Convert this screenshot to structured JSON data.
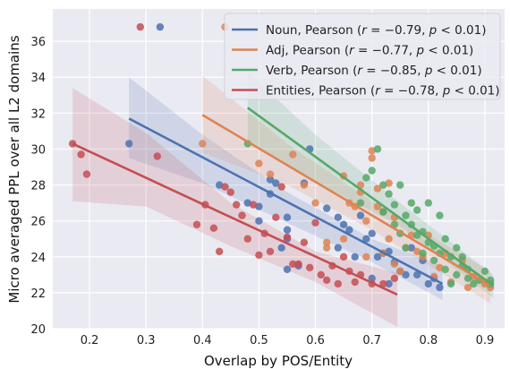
{
  "chart_data": {
    "type": "scatter",
    "title": "",
    "xlabel": "Overlap by POS/Entity",
    "ylabel": "Micro averaged PPL over all L2 domains",
    "xlim": [
      0.135,
      0.935
    ],
    "ylim": [
      20,
      37.8
    ],
    "xticks": [
      0.2,
      0.3,
      0.4,
      0.5,
      0.6,
      0.7,
      0.8,
      0.9
    ],
    "xtick_labels": [
      "0.2",
      "0.3",
      "0.4",
      "0.5",
      "0.6",
      "0.7",
      "0.8",
      "0.9"
    ],
    "yticks": [
      20,
      22,
      24,
      26,
      28,
      30,
      32,
      34,
      36
    ],
    "ytick_labels": [
      "20",
      "22",
      "24",
      "26",
      "28",
      "30",
      "32",
      "34",
      "36"
    ],
    "grid": true,
    "legend_position": "top-right",
    "series": [
      {
        "name": "Noun, Pearson (r = −0.79, p < 0.01)",
        "name_parts": [
          "Noun, Pearson (",
          "r",
          " = −0.79, ",
          "p",
          " < 0.01)"
        ],
        "color": "#4c72b0",
        "points": [
          [
            0.27,
            30.3
          ],
          [
            0.325,
            36.8
          ],
          [
            0.43,
            28.0
          ],
          [
            0.48,
            27.0
          ],
          [
            0.5,
            26.8
          ],
          [
            0.5,
            26.0
          ],
          [
            0.52,
            28.3
          ],
          [
            0.52,
            27.5
          ],
          [
            0.53,
            28.1
          ],
          [
            0.55,
            26.2
          ],
          [
            0.55,
            25.5
          ],
          [
            0.55,
            25.0
          ],
          [
            0.54,
            24.5
          ],
          [
            0.55,
            23.3
          ],
          [
            0.57,
            23.5
          ],
          [
            0.58,
            28.1
          ],
          [
            0.59,
            30.0
          ],
          [
            0.62,
            26.7
          ],
          [
            0.64,
            26.2
          ],
          [
            0.64,
            24.5
          ],
          [
            0.65,
            25.8
          ],
          [
            0.66,
            25.5
          ],
          [
            0.67,
            24.0
          ],
          [
            0.68,
            26.3
          ],
          [
            0.69,
            25.0
          ],
          [
            0.7,
            25.3
          ],
          [
            0.7,
            22.8
          ],
          [
            0.71,
            24.0
          ],
          [
            0.72,
            24.2
          ],
          [
            0.73,
            22.5
          ],
          [
            0.73,
            24.3
          ],
          [
            0.74,
            23.7
          ],
          [
            0.75,
            23.2
          ],
          [
            0.76,
            23.0
          ],
          [
            0.77,
            24.5
          ],
          [
            0.78,
            23.0
          ],
          [
            0.79,
            23.8
          ],
          [
            0.8,
            22.5
          ],
          [
            0.81,
            22.8
          ],
          [
            0.82,
            22.3
          ]
        ],
        "fit_x": [
          0.27,
          0.825
        ],
        "fit_y": [
          31.7,
          22.5
        ],
        "ci_x": [
          0.27,
          0.4,
          0.55,
          0.7,
          0.825
        ],
        "ci_lower": [
          29.5,
          28.1,
          25.9,
          23.7,
          21.6
        ],
        "ci_upper": [
          34.0,
          30.8,
          27.6,
          25.0,
          23.5
        ]
      },
      {
        "name": "Adj, Pearson (r = −0.77, p < 0.01)",
        "name_parts": [
          "Adj, Pearson (",
          "r",
          " = −0.77, ",
          "p",
          " < 0.01)"
        ],
        "color": "#dd8452",
        "points": [
          [
            0.4,
            30.3
          ],
          [
            0.44,
            36.8
          ],
          [
            0.5,
            29.2
          ],
          [
            0.52,
            28.6
          ],
          [
            0.56,
            29.7
          ],
          [
            0.58,
            28.0
          ],
          [
            0.6,
            27.0
          ],
          [
            0.62,
            24.8
          ],
          [
            0.62,
            24.5
          ],
          [
            0.65,
            25.0
          ],
          [
            0.65,
            28.5
          ],
          [
            0.66,
            27.0
          ],
          [
            0.67,
            26.8
          ],
          [
            0.68,
            28.0
          ],
          [
            0.68,
            27.6
          ],
          [
            0.69,
            26.0
          ],
          [
            0.69,
            24.0
          ],
          [
            0.7,
            29.9
          ],
          [
            0.7,
            29.5
          ],
          [
            0.71,
            27.8
          ],
          [
            0.71,
            26.8
          ],
          [
            0.72,
            26.5
          ],
          [
            0.72,
            24.2
          ],
          [
            0.73,
            28.1
          ],
          [
            0.73,
            25.0
          ],
          [
            0.74,
            26.2
          ],
          [
            0.74,
            23.6
          ],
          [
            0.75,
            23.2
          ],
          [
            0.76,
            24.5
          ],
          [
            0.77,
            25.2
          ],
          [
            0.78,
            24.3
          ],
          [
            0.79,
            24.0
          ],
          [
            0.8,
            25.2
          ],
          [
            0.81,
            22.9
          ],
          [
            0.82,
            23.4
          ],
          [
            0.83,
            24.2
          ],
          [
            0.84,
            22.6
          ],
          [
            0.86,
            23.8
          ],
          [
            0.87,
            22.3
          ],
          [
            0.88,
            22.9
          ],
          [
            0.9,
            22.5
          ],
          [
            0.91,
            22.3
          ]
        ],
        "fit_x": [
          0.4,
          0.91
        ],
        "fit_y": [
          31.9,
          22.4
        ],
        "ci_x": [
          0.4,
          0.55,
          0.7,
          0.91
        ],
        "ci_lower": [
          29.8,
          28.0,
          25.5,
          21.4
        ],
        "ci_upper": [
          34.1,
          30.3,
          27.1,
          23.2
        ]
      },
      {
        "name": "Verb, Pearson (r = −0.85, p < 0.01)",
        "name_parts": [
          "Verb, Pearson (",
          "r",
          " = −0.85, ",
          "p",
          " < 0.01)"
        ],
        "color": "#55a868",
        "points": [
          [
            0.48,
            30.3
          ],
          [
            0.68,
            27.0
          ],
          [
            0.69,
            28.4
          ],
          [
            0.7,
            28.8
          ],
          [
            0.71,
            30.0
          ],
          [
            0.72,
            28.0
          ],
          [
            0.72,
            26.5
          ],
          [
            0.73,
            27.5
          ],
          [
            0.74,
            26.9
          ],
          [
            0.74,
            25.8
          ],
          [
            0.75,
            25.3
          ],
          [
            0.75,
            28.0
          ],
          [
            0.76,
            26.3
          ],
          [
            0.76,
            24.5
          ],
          [
            0.77,
            25.8
          ],
          [
            0.77,
            27.0
          ],
          [
            0.78,
            25.2
          ],
          [
            0.78,
            26.6
          ],
          [
            0.79,
            24.2
          ],
          [
            0.79,
            25.4
          ],
          [
            0.8,
            27.0
          ],
          [
            0.8,
            24.8
          ],
          [
            0.81,
            24.6
          ],
          [
            0.81,
            23.8
          ],
          [
            0.82,
            26.3
          ],
          [
            0.82,
            24.2
          ],
          [
            0.83,
            25.0
          ],
          [
            0.83,
            23.3
          ],
          [
            0.84,
            24.0
          ],
          [
            0.84,
            22.5
          ],
          [
            0.85,
            24.5
          ],
          [
            0.85,
            23.0
          ],
          [
            0.86,
            24.0
          ],
          [
            0.86,
            23.5
          ],
          [
            0.87,
            23.3
          ],
          [
            0.87,
            22.8
          ],
          [
            0.88,
            22.5
          ],
          [
            0.89,
            22.7
          ],
          [
            0.9,
            23.2
          ],
          [
            0.91,
            22.5
          ],
          [
            0.91,
            22.7
          ]
        ],
        "fit_x": [
          0.48,
          0.915
        ],
        "fit_y": [
          32.3,
          22.4
        ],
        "ci_x": [
          0.48,
          0.6,
          0.75,
          0.915
        ],
        "ci_lower": [
          30.5,
          28.2,
          25.7,
          21.7
        ],
        "ci_upper": [
          34.3,
          30.8,
          27.0,
          23.0
        ]
      },
      {
        "name": "Entities, Pearson (r = −0.78, p < 0.01)",
        "name_parts": [
          "Entities, Pearson (",
          "r",
          " = −0.78, ",
          "p",
          " < 0.01)"
        ],
        "color": "#c44e52",
        "points": [
          [
            0.17,
            30.3
          ],
          [
            0.185,
            29.7
          ],
          [
            0.195,
            28.6
          ],
          [
            0.29,
            36.8
          ],
          [
            0.32,
            29.6
          ],
          [
            0.39,
            25.8
          ],
          [
            0.405,
            26.9
          ],
          [
            0.42,
            25.6
          ],
          [
            0.43,
            24.3
          ],
          [
            0.44,
            27.9
          ],
          [
            0.45,
            27.6
          ],
          [
            0.46,
            26.9
          ],
          [
            0.47,
            26.3
          ],
          [
            0.48,
            25.0
          ],
          [
            0.49,
            26.9
          ],
          [
            0.5,
            24.1
          ],
          [
            0.51,
            25.3
          ],
          [
            0.52,
            24.3
          ],
          [
            0.53,
            26.2
          ],
          [
            0.54,
            27.9
          ],
          [
            0.55,
            25.1
          ],
          [
            0.56,
            23.6
          ],
          [
            0.57,
            23.6
          ],
          [
            0.58,
            24.8
          ],
          [
            0.59,
            23.4
          ],
          [
            0.6,
            25.9
          ],
          [
            0.61,
            23.0
          ],
          [
            0.62,
            22.7
          ],
          [
            0.63,
            23.5
          ],
          [
            0.64,
            22.5
          ],
          [
            0.65,
            24.0
          ],
          [
            0.66,
            23.2
          ],
          [
            0.67,
            22.6
          ],
          [
            0.68,
            23.0
          ],
          [
            0.7,
            22.5
          ],
          [
            0.72,
            22.5
          ],
          [
            0.74,
            22.8
          ]
        ],
        "fit_x": [
          0.17,
          0.745
        ],
        "fit_y": [
          30.3,
          21.9
        ],
        "ci_x": [
          0.17,
          0.3,
          0.45,
          0.6,
          0.745
        ],
        "ci_lower": [
          27.1,
          26.8,
          24.6,
          22.6,
          20.1
        ],
        "ci_upper": [
          33.4,
          30.9,
          27.0,
          24.3,
          23.1
        ]
      }
    ]
  }
}
